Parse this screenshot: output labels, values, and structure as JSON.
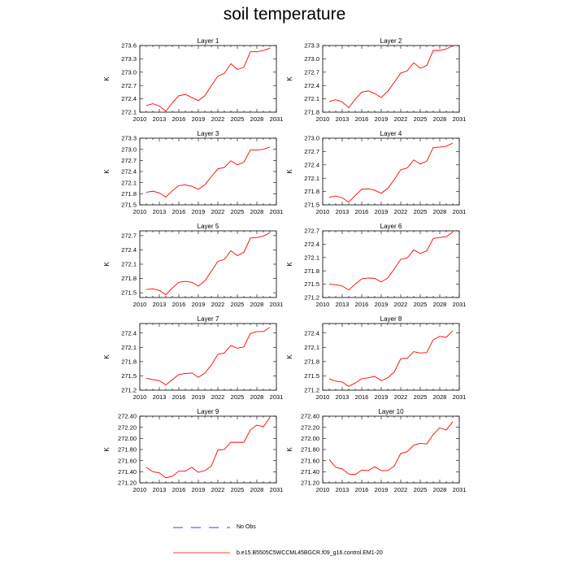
{
  "title": "soil temperature",
  "legend": {
    "no_obs_label": "No Obs",
    "run_label": "b.e15.B5505C5WCCML45BGCR.f09_g16.control.EM1-20",
    "run_color": "#ff0000",
    "no_obs_color": "#0000cc"
  },
  "chart_data": [
    {
      "type": "line",
      "title": "Layer 1",
      "ylabel": "K",
      "xlabel": "",
      "x": [
        2011,
        2012,
        2013,
        2014,
        2015,
        2016,
        2017,
        2018,
        2019,
        2020,
        2021,
        2022,
        2023,
        2024,
        2025,
        2026,
        2027,
        2028,
        2029,
        2030
      ],
      "series": [
        {
          "name": "b.e15.B5505C5WCCML45BGCR.f09_g16.control.EM1-20",
          "values": [
            272.25,
            272.29,
            272.24,
            272.12,
            272.31,
            272.47,
            272.5,
            272.43,
            272.36,
            272.47,
            272.7,
            272.91,
            272.97,
            273.19,
            273.06,
            273.11,
            273.46,
            273.46,
            273.49,
            273.54
          ]
        }
      ],
      "xlim": [
        2010,
        2031
      ],
      "ylim": [
        272.1,
        273.6
      ],
      "xticks": [
        "2010",
        "2013",
        "2016",
        "2019",
        "2022",
        "2025",
        "2028",
        "2031"
      ],
      "yticks": [
        "272.1",
        "272.4",
        "272.7",
        "273.0",
        "273.3",
        "273.6"
      ]
    },
    {
      "type": "line",
      "title": "Layer 2",
      "ylabel": "K",
      "xlabel": "",
      "x": [
        2011,
        2012,
        2013,
        2014,
        2015,
        2016,
        2017,
        2018,
        2019,
        2020,
        2021,
        2022,
        2023,
        2024,
        2025,
        2026,
        2027,
        2028,
        2029,
        2030
      ],
      "series": [
        {
          "name": "b.e15.B5505C5WCCML45BGCR.f09_g16.control.EM1-20",
          "values": [
            272.04,
            272.08,
            272.03,
            271.9,
            272.09,
            272.25,
            272.28,
            272.22,
            272.13,
            272.27,
            272.47,
            272.68,
            272.73,
            272.91,
            272.79,
            272.85,
            273.19,
            273.19,
            273.22,
            273.3
          ]
        }
      ],
      "xlim": [
        2010,
        2031
      ],
      "ylim": [
        271.8,
        273.3
      ],
      "xticks": [
        "2010",
        "2013",
        "2016",
        "2019",
        "2022",
        "2025",
        "2028",
        "2031"
      ],
      "yticks": [
        "271.8",
        "272.1",
        "272.4",
        "272.7",
        "273.0",
        "273.3"
      ]
    },
    {
      "type": "line",
      "title": "Layer 3",
      "ylabel": "K",
      "xlabel": "",
      "x": [
        2011,
        2012,
        2013,
        2014,
        2015,
        2016,
        2017,
        2018,
        2019,
        2020,
        2021,
        2022,
        2023,
        2024,
        2025,
        2026,
        2027,
        2028,
        2029,
        2030
      ],
      "series": [
        {
          "name": "b.e15.B5505C5WCCML45BGCR.f09_g16.control.EM1-20",
          "values": [
            271.84,
            271.87,
            271.82,
            271.71,
            271.88,
            272.02,
            272.04,
            272.0,
            271.92,
            272.04,
            272.26,
            272.47,
            272.51,
            272.69,
            272.58,
            272.65,
            272.98,
            272.98,
            273.0,
            273.06
          ]
        }
      ],
      "xlim": [
        2010,
        2031
      ],
      "ylim": [
        271.5,
        273.3
      ],
      "xticks": [
        "2010",
        "2013",
        "2016",
        "2019",
        "2022",
        "2025",
        "2028",
        "2031"
      ],
      "yticks": [
        "271.5",
        "271.8",
        "272.1",
        "272.4",
        "272.7",
        "273.0",
        "273.3"
      ]
    },
    {
      "type": "line",
      "title": "Layer 4",
      "ylabel": "K",
      "xlabel": "",
      "x": [
        2011,
        2012,
        2013,
        2014,
        2015,
        2016,
        2017,
        2018,
        2019,
        2020,
        2021,
        2022,
        2023,
        2024,
        2025,
        2026,
        2027,
        2028,
        2029,
        2030
      ],
      "series": [
        {
          "name": "b.e15.B5505C5WCCML45BGCR.f09_g16.control.EM1-20",
          "values": [
            271.67,
            271.7,
            271.66,
            271.56,
            271.71,
            271.85,
            271.86,
            271.83,
            271.76,
            271.87,
            272.07,
            272.29,
            272.33,
            272.51,
            272.42,
            272.48,
            272.79,
            272.8,
            272.82,
            272.89
          ]
        }
      ],
      "xlim": [
        2010,
        2031
      ],
      "ylim": [
        271.5,
        273.0
      ],
      "xticks": [
        "2010",
        "2013",
        "2016",
        "2019",
        "2022",
        "2025",
        "2028",
        "2031"
      ],
      "yticks": [
        "271.5",
        "271.8",
        "272.1",
        "272.4",
        "272.7",
        "273.0"
      ]
    },
    {
      "type": "line",
      "title": "Layer 5",
      "ylabel": "K",
      "xlabel": "",
      "x": [
        2011,
        2012,
        2013,
        2014,
        2015,
        2016,
        2017,
        2018,
        2019,
        2020,
        2021,
        2022,
        2023,
        2024,
        2025,
        2026,
        2027,
        2028,
        2029,
        2030
      ],
      "series": [
        {
          "name": "b.e15.B5505C5WCCML45BGCR.f09_g16.control.EM1-20",
          "values": [
            271.57,
            271.58,
            271.55,
            271.46,
            271.6,
            271.72,
            271.74,
            271.72,
            271.64,
            271.75,
            271.95,
            272.16,
            272.2,
            272.38,
            272.28,
            272.35,
            272.65,
            272.66,
            272.69,
            272.76
          ]
        }
      ],
      "xlim": [
        2010,
        2031
      ],
      "ylim": [
        271.4,
        272.8
      ],
      "xticks": [
        "2010",
        "2013",
        "2016",
        "2019",
        "2022",
        "2025",
        "2028",
        "2031"
      ],
      "yticks": [
        "271.5",
        "271.8",
        "272.1",
        "272.4",
        "272.7"
      ]
    },
    {
      "type": "line",
      "title": "Layer 6",
      "ylabel": "K",
      "xlabel": "",
      "x": [
        2011,
        2012,
        2013,
        2014,
        2015,
        2016,
        2017,
        2018,
        2019,
        2020,
        2021,
        2022,
        2023,
        2024,
        2025,
        2026,
        2027,
        2028,
        2029,
        2030
      ],
      "series": [
        {
          "name": "b.e15.B5505C5WCCML45BGCR.f09_g16.control.EM1-20",
          "values": [
            271.5,
            271.49,
            271.46,
            271.37,
            271.5,
            271.62,
            271.64,
            271.63,
            271.55,
            271.64,
            271.84,
            272.06,
            272.09,
            272.27,
            272.19,
            272.25,
            272.53,
            272.55,
            272.57,
            272.67
          ]
        }
      ],
      "xlim": [
        2010,
        2031
      ],
      "ylim": [
        271.2,
        272.7
      ],
      "xticks": [
        "2010",
        "2013",
        "2016",
        "2019",
        "2022",
        "2025",
        "2028",
        "2031"
      ],
      "yticks": [
        "271.2",
        "271.5",
        "271.8",
        "272.1",
        "272.4",
        "272.7"
      ]
    },
    {
      "type": "line",
      "title": "Layer 7",
      "ylabel": "K",
      "xlabel": "",
      "x": [
        2011,
        2012,
        2013,
        2014,
        2015,
        2016,
        2017,
        2018,
        2019,
        2020,
        2021,
        2022,
        2023,
        2024,
        2025,
        2026,
        2027,
        2028,
        2029,
        2030
      ],
      "series": [
        {
          "name": "b.e15.B5505C5WCCML45BGCR.f09_g16.control.EM1-20",
          "values": [
            271.45,
            271.42,
            271.4,
            271.31,
            271.42,
            271.53,
            271.55,
            271.56,
            271.47,
            271.56,
            271.73,
            271.95,
            271.98,
            272.14,
            272.08,
            272.11,
            272.39,
            272.43,
            272.43,
            272.52
          ]
        }
      ],
      "xlim": [
        2010,
        2031
      ],
      "ylim": [
        271.2,
        272.6
      ],
      "xticks": [
        "2010",
        "2013",
        "2016",
        "2019",
        "2022",
        "2025",
        "2028",
        "2031"
      ],
      "yticks": [
        "271.2",
        "271.5",
        "271.8",
        "272.1",
        "272.4"
      ]
    },
    {
      "type": "line",
      "title": "Layer 8",
      "ylabel": "K",
      "xlabel": "",
      "x": [
        2011,
        2012,
        2013,
        2014,
        2015,
        2016,
        2017,
        2018,
        2019,
        2020,
        2021,
        2022,
        2023,
        2024,
        2025,
        2026,
        2027,
        2028,
        2029,
        2030
      ],
      "series": [
        {
          "name": "b.e15.B5505C5WCCML45BGCR.f09_g16.control.EM1-20",
          "values": [
            271.44,
            271.39,
            271.37,
            271.28,
            271.35,
            271.44,
            271.46,
            271.49,
            271.4,
            271.46,
            271.58,
            271.86,
            271.87,
            272.01,
            271.98,
            271.99,
            272.26,
            272.33,
            272.31,
            272.45
          ]
        }
      ],
      "xlim": [
        2010,
        2031
      ],
      "ylim": [
        271.2,
        272.6
      ],
      "xticks": [
        "2010",
        "2013",
        "2016",
        "2019",
        "2022",
        "2025",
        "2028",
        "2031"
      ],
      "yticks": [
        "271.2",
        "271.5",
        "271.8",
        "272.1",
        "272.4"
      ]
    },
    {
      "type": "line",
      "title": "Layer 9",
      "ylabel": "K",
      "xlabel": "",
      "x": [
        2011,
        2012,
        2013,
        2014,
        2015,
        2016,
        2017,
        2018,
        2019,
        2020,
        2021,
        2022,
        2023,
        2024,
        2025,
        2026,
        2027,
        2028,
        2029,
        2030
      ],
      "series": [
        {
          "name": "b.e15.B5505C5WCCML45BGCR.f09_g16.control.EM1-20",
          "values": [
            271.48,
            271.4,
            271.38,
            271.29,
            271.32,
            271.41,
            271.41,
            271.48,
            271.39,
            271.42,
            271.5,
            271.79,
            271.8,
            271.93,
            271.93,
            271.93,
            272.15,
            272.24,
            272.21,
            272.38
          ]
        }
      ],
      "xlim": [
        2010,
        2031
      ],
      "ylim": [
        271.2,
        272.4
      ],
      "xticks": [
        "2010",
        "2013",
        "2016",
        "2019",
        "2022",
        "2025",
        "2028",
        "2031"
      ],
      "yticks": [
        "271.20",
        "271.40",
        "271.60",
        "271.80",
        "272.00",
        "272.20",
        "272.40"
      ]
    },
    {
      "type": "line",
      "title": "Layer 10",
      "ylabel": "K",
      "xlabel": "",
      "x": [
        2011,
        2012,
        2013,
        2014,
        2015,
        2016,
        2017,
        2018,
        2019,
        2020,
        2021,
        2022,
        2023,
        2024,
        2025,
        2026,
        2027,
        2028,
        2029,
        2030
      ],
      "series": [
        {
          "name": "b.e15.B5505C5WCCML45BGCR.f09_g16.control.EM1-20",
          "values": [
            271.62,
            271.48,
            271.45,
            271.36,
            271.35,
            271.43,
            271.42,
            271.49,
            271.42,
            271.42,
            271.5,
            271.73,
            271.76,
            271.88,
            271.91,
            271.9,
            272.07,
            272.19,
            272.15,
            272.3
          ]
        }
      ],
      "xlim": [
        2010,
        2031
      ],
      "ylim": [
        271.2,
        272.4
      ],
      "xticks": [
        "2010",
        "2013",
        "2016",
        "2019",
        "2022",
        "2025",
        "2028",
        "2031"
      ],
      "yticks": [
        "271.20",
        "271.40",
        "271.60",
        "271.80",
        "272.00",
        "272.20",
        "272.40"
      ]
    }
  ]
}
